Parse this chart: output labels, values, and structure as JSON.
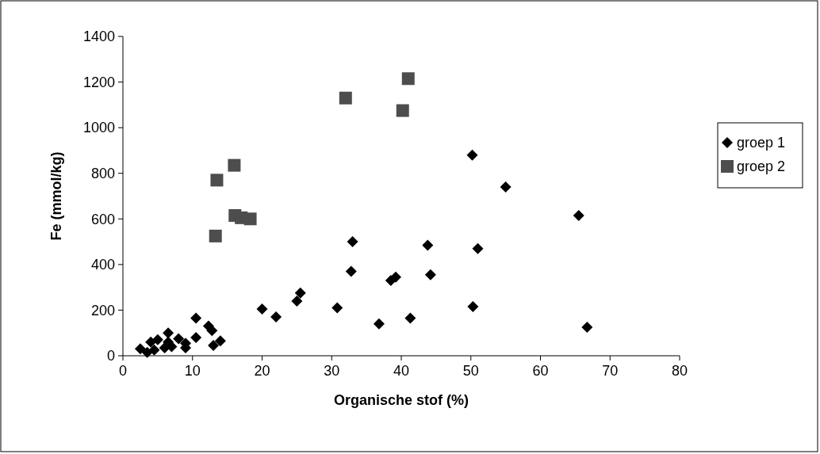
{
  "chart_data": {
    "type": "scatter",
    "xlabel": "Organische stof (%)",
    "ylabel": "Fe (mmol/kg)",
    "xlim": [
      0,
      80
    ],
    "xticks": [
      0,
      10,
      20,
      30,
      40,
      50,
      60,
      70,
      80
    ],
    "ylim": [
      0,
      1400
    ],
    "yticks": [
      0,
      200,
      400,
      600,
      800,
      1000,
      1200,
      1400
    ],
    "grid": false,
    "legend": "right",
    "series": [
      {
        "name": "groep 1",
        "color": "#000000",
        "marker": "diamond",
        "x": [
          2.5,
          3.5,
          4,
          4.5,
          5,
          6,
          6.5,
          6.5,
          7,
          8,
          9,
          9,
          10.5,
          10.5,
          12.3,
          12.8,
          13,
          14,
          20,
          22,
          25,
          25.5,
          30.8,
          32.8,
          33,
          36.8,
          38.5,
          39.2,
          41.3,
          43.8,
          44.2,
          50.2,
          50.3,
          51,
          55,
          65.5,
          66.7
        ],
        "values": [
          30,
          15,
          60,
          25,
          70,
          35,
          100,
          60,
          40,
          75,
          35,
          55,
          165,
          80,
          130,
          110,
          45,
          65,
          205,
          170,
          240,
          275,
          210,
          370,
          500,
          140,
          330,
          345,
          165,
          485,
          355,
          880,
          215,
          470,
          740,
          615,
          125
        ]
      },
      {
        "name": "groep 2",
        "color": "#4d4d4d",
        "marker": "square",
        "x": [
          13.3,
          13.5,
          16,
          16.1,
          17,
          18.3,
          32,
          40.2,
          41
        ],
        "values": [
          525,
          770,
          835,
          615,
          605,
          600,
          1130,
          1075,
          1215
        ]
      }
    ]
  }
}
